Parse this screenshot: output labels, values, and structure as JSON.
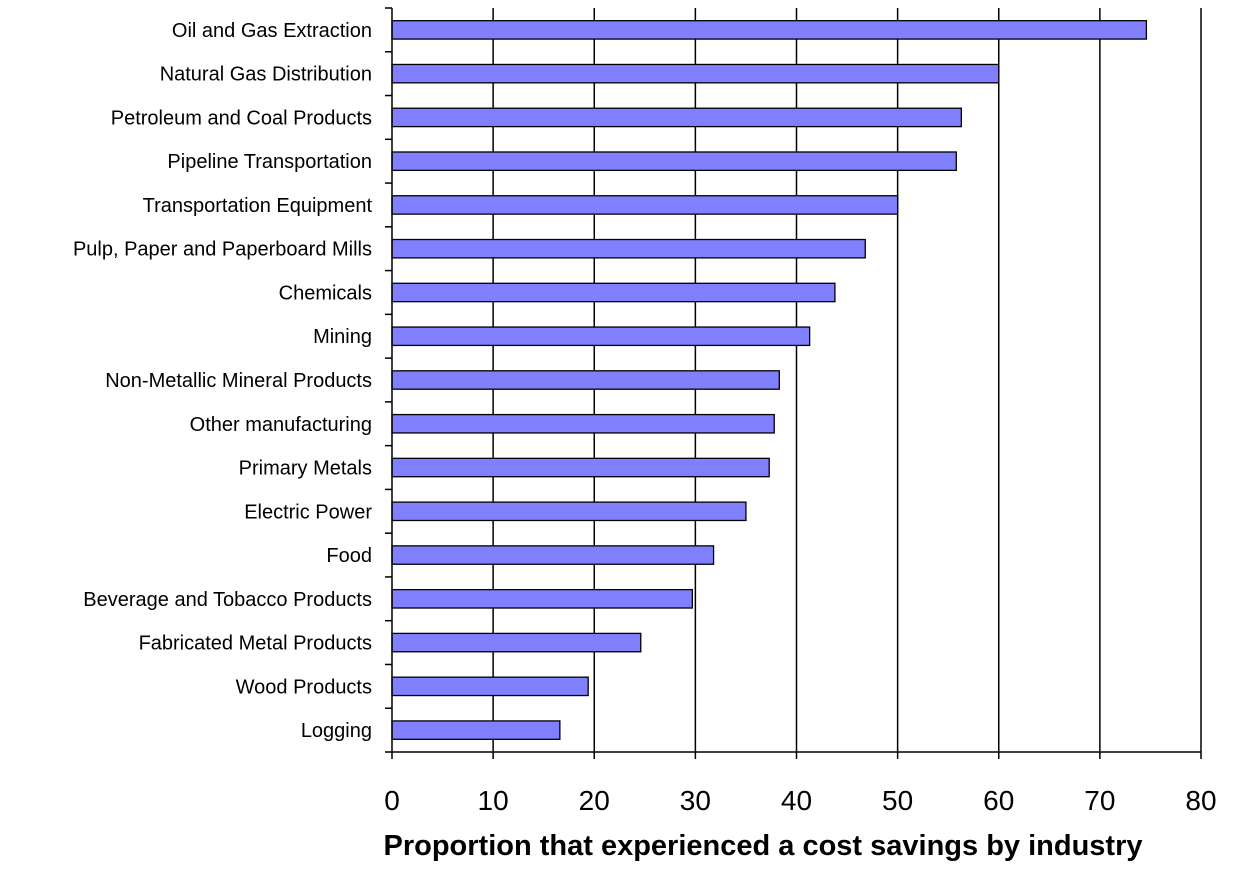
{
  "chart_data": {
    "type": "bar",
    "orientation": "horizontal",
    "title": "",
    "xlabel": "Proportion that experienced a cost savings by industry",
    "ylabel": "",
    "xlim": [
      0,
      80
    ],
    "xticks": [
      0,
      10,
      20,
      30,
      40,
      50,
      60,
      70,
      80
    ],
    "grid": "vertical gridlines at major ticks",
    "legend": "none",
    "bar_color": "#8080ff",
    "categories": [
      "Oil and Gas Extraction",
      "Natural Gas Distribution",
      "Petroleum and Coal Products",
      "Pipeline Transportation",
      "Transportation Equipment",
      "Pulp, Paper and Paperboard Mills",
      "Chemicals",
      "Mining",
      "Non-Metallic Mineral Products",
      "Other manufacturing",
      "Primary Metals",
      "Electric Power",
      "Food",
      "Beverage and Tobacco Products",
      "Fabricated Metal Products",
      "Wood Products",
      "Logging"
    ],
    "values": [
      74.6,
      60.0,
      56.3,
      55.8,
      50.0,
      46.8,
      43.8,
      41.3,
      38.3,
      37.8,
      37.3,
      35.0,
      31.8,
      29.7,
      24.6,
      19.4,
      16.6
    ]
  }
}
